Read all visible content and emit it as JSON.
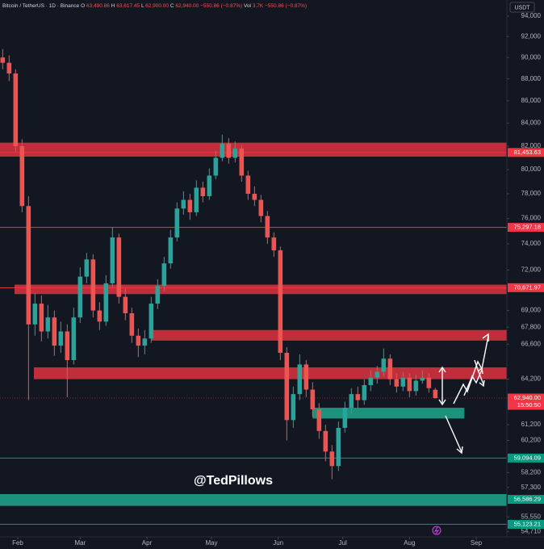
{
  "chart_data": {
    "type": "candlestick",
    "header": {
      "symbol": "Bitcoin / TetherUS · 1D · Binance",
      "fields": [
        {
          "label": "O",
          "value": "63,490.86"
        },
        {
          "label": "H",
          "value": "63,617.45"
        },
        {
          "label": "L",
          "value": "62,900.00"
        },
        {
          "label": "C",
          "value": "62,940.00"
        }
      ],
      "change": "−550.86 (−0.87%)",
      "volume_label": "Vol",
      "volume": "3.7K",
      "volume_change": "−550.86 (−0.87%)"
    },
    "currency": "USDT",
    "watermark": "@TedPillows",
    "log_scale": true,
    "grid": false,
    "up_color": "#26a69a",
    "down_color": "#ef5350",
    "xlim": [
      23.75,
      259.25
    ],
    "xticks": [
      {
        "value": 32,
        "label": "Feb"
      },
      {
        "value": 61,
        "label": "Mar"
      },
      {
        "value": 92,
        "label": "Apr"
      },
      {
        "value": 122,
        "label": "May"
      },
      {
        "value": 153,
        "label": "Jun"
      },
      {
        "value": 183,
        "label": "Jul"
      },
      {
        "value": 214,
        "label": "Aug"
      },
      {
        "value": 245,
        "label": "Sep"
      }
    ],
    "ylim": [
      54400,
      95600
    ],
    "yticks": [
      {
        "value": 94000,
        "label": "94,000"
      },
      {
        "value": 92000,
        "label": "92,000"
      },
      {
        "value": 90000,
        "label": "90,000"
      },
      {
        "value": 88000,
        "label": "88,000"
      },
      {
        "value": 86000,
        "label": "86,000"
      },
      {
        "value": 84000,
        "label": "84,000"
      },
      {
        "value": 82000,
        "label": "82,000"
      },
      {
        "value": 80000,
        "label": "80,000"
      },
      {
        "value": 78000,
        "label": "78,000"
      },
      {
        "value": 76000,
        "label": "76,000"
      },
      {
        "value": 74000,
        "label": "74,000"
      },
      {
        "value": 72000,
        "label": "72,000"
      },
      {
        "value": 69000,
        "label": "69,000"
      },
      {
        "value": 67800,
        "label": "67,800"
      },
      {
        "value": 66600,
        "label": "66,600"
      },
      {
        "value": 64200,
        "label": "64,200"
      },
      {
        "value": 61200,
        "label": "61,200"
      },
      {
        "value": 60200,
        "label": "60,200"
      },
      {
        "value": 58200,
        "label": "58,200"
      },
      {
        "value": 57300,
        "label": "57,300"
      },
      {
        "value": 55550,
        "label": "55,550"
      },
      {
        "value": 54710,
        "label": "54,710"
      }
    ],
    "x": [
      25,
      28,
      31,
      34,
      37,
      40,
      43,
      46,
      49,
      52,
      55,
      58,
      61,
      64,
      67,
      70,
      73,
      76,
      79,
      82,
      85,
      88,
      91,
      94,
      97,
      100,
      103,
      106,
      109,
      112,
      115,
      118,
      121,
      124,
      127,
      130,
      133,
      136,
      139,
      142,
      145,
      148,
      151,
      154,
      157,
      160,
      163,
      166,
      169,
      172,
      175,
      178,
      181,
      184,
      187,
      190,
      193,
      196,
      199,
      202,
      205,
      208,
      211,
      214,
      217,
      220,
      223,
      226
    ],
    "open": [
      90000,
      89500,
      88500,
      82000,
      77000,
      68000,
      69500,
      67500,
      68500,
      66500,
      67500,
      65500,
      68500,
      71500,
      72800,
      69000,
      68200,
      71000,
      74500,
      70000,
      68800,
      67200,
      66500,
      67000,
      69500,
      70800,
      72500,
      74500,
      76800,
      77500,
      76500,
      78500,
      77800,
      79500,
      81000,
      82200,
      81000,
      81800,
      79500,
      78000,
      77500,
      76200,
      74500,
      73500,
      66000,
      61500,
      63200,
      65200,
      63500,
      62200,
      60800,
      59500,
      58600,
      61000,
      62300,
      63200,
      62800,
      63800,
      64300,
      64700,
      65600,
      64200,
      63700,
      64300,
      63400,
      64100,
      64300,
      63490.86
    ],
    "high": [
      90800,
      90200,
      88900,
      82600,
      77800,
      70300,
      70100,
      69400,
      69000,
      68200,
      68000,
      69200,
      72200,
      73300,
      73200,
      69600,
      71600,
      75300,
      74800,
      70600,
      69200,
      67700,
      67600,
      70000,
      71300,
      73000,
      75100,
      77300,
      78200,
      78000,
      79100,
      79000,
      80100,
      81600,
      83000,
      82700,
      82400,
      82100,
      79900,
      78600,
      77900,
      76600,
      74900,
      73800,
      66400,
      63700,
      65900,
      65500,
      64000,
      62600,
      61200,
      59900,
      61400,
      62700,
      63600,
      63700,
      64200,
      64800,
      65100,
      66300,
      65900,
      64600,
      64700,
      64600,
      64500,
      64800,
      64600,
      63617.45
    ],
    "low": [
      88900,
      87800,
      81500,
      76500,
      62800,
      67200,
      66800,
      67000,
      65800,
      66000,
      63000,
      65200,
      68100,
      71000,
      68500,
      67600,
      67900,
      70700,
      69500,
      68300,
      66700,
      65700,
      65900,
      66700,
      69100,
      70400,
      72100,
      74200,
      76300,
      75900,
      76200,
      77300,
      77500,
      79200,
      80700,
      80500,
      80600,
      79000,
      77500,
      77000,
      75700,
      74000,
      73000,
      65500,
      60200,
      61000,
      62800,
      63000,
      61700,
      60300,
      58900,
      57800,
      58300,
      60700,
      61900,
      62300,
      62500,
      63400,
      63900,
      64400,
      63800,
      63300,
      63400,
      63000,
      63100,
      63900,
      63300,
      62900
    ],
    "close": [
      89500,
      88500,
      82000,
      77000,
      68000,
      69500,
      67500,
      68500,
      66500,
      67500,
      65500,
      68500,
      71500,
      72800,
      69000,
      68200,
      71000,
      74500,
      70000,
      68800,
      67200,
      66500,
      67000,
      69500,
      70800,
      72500,
      74500,
      76800,
      77500,
      76500,
      78500,
      77800,
      79500,
      81000,
      82200,
      81000,
      81800,
      79500,
      78000,
      77500,
      76200,
      74500,
      73500,
      66000,
      61500,
      63200,
      65200,
      63500,
      62200,
      60800,
      59500,
      58600,
      61000,
      62300,
      63200,
      62800,
      63800,
      64300,
      64700,
      65600,
      64200,
      63700,
      64300,
      63400,
      64100,
      64300,
      63600,
      62940
    ],
    "zones": [
      {
        "low": 81100,
        "high": 82300,
        "from": 23.75,
        "color": "#d3313d"
      },
      {
        "low": 70200,
        "high": 70900,
        "from": 30.5,
        "color": "#d3313d"
      },
      {
        "low": 66850,
        "high": 67600,
        "from": 94,
        "color": "#d3313d"
      },
      {
        "low": 64200,
        "high": 65000,
        "from": 39.5,
        "color": "#d3313d"
      },
      {
        "low": 61600,
        "high": 62300,
        "from": 169,
        "to": 239.5,
        "color": "#1f9e86"
      },
      {
        "low": 56200,
        "high": 56900,
        "from": 23.75,
        "color": "#1f9e86"
      }
    ],
    "levels": [
      {
        "value": 81453.63,
        "label": "81,453.63",
        "color": "#f23645"
      },
      {
        "value": 75297.18,
        "label": "75,297.18",
        "color": "#f23645"
      },
      {
        "value": 70671.97,
        "label": "70,671.97",
        "color": "#f23645"
      },
      {
        "value": 59094.09,
        "label": "59,094.09",
        "color": "#089981"
      },
      {
        "value": 56586.29,
        "label": "56,586.29",
        "color": "#089981"
      },
      {
        "value": 55123.21,
        "label": "55,123.21",
        "color": "#089981"
      }
    ],
    "last_price": {
      "value": 62940,
      "label": "62,940.00",
      "countdown": "15:50:50",
      "color": "#f23645"
    }
  }
}
